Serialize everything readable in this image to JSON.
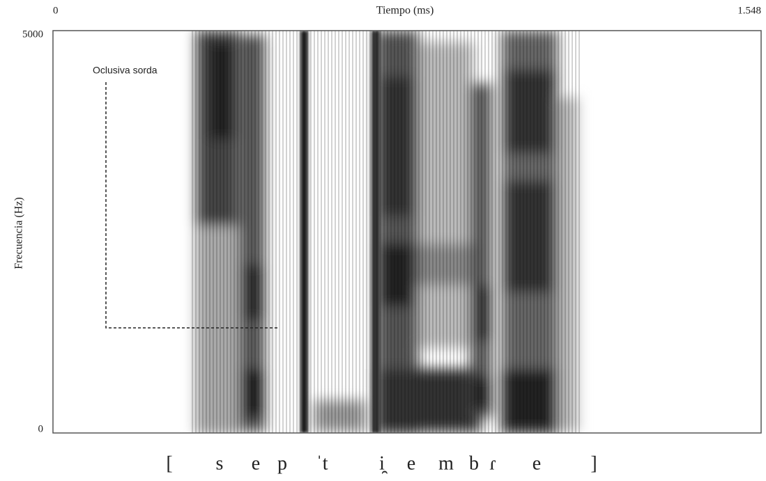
{
  "chart_data": {
    "type": "spectrogram",
    "x_label": "Tiempo (ms)",
    "y_label": "Frecuencia (Hz)",
    "xlim": [
      0,
      1548
    ],
    "xticks": [
      0,
      {
        "value": 1548,
        "label": "1.548"
      }
    ],
    "ylim": [
      0,
      5000
    ],
    "yticks": [
      0,
      5000
    ],
    "annotations": [
      "Oclusiva sorda"
    ],
    "transcription": [
      "[",
      "s",
      "e",
      "p",
      "ˈt",
      "i̯",
      "e",
      "m",
      "b",
      "ɾ",
      "e",
      "]"
    ]
  }
}
